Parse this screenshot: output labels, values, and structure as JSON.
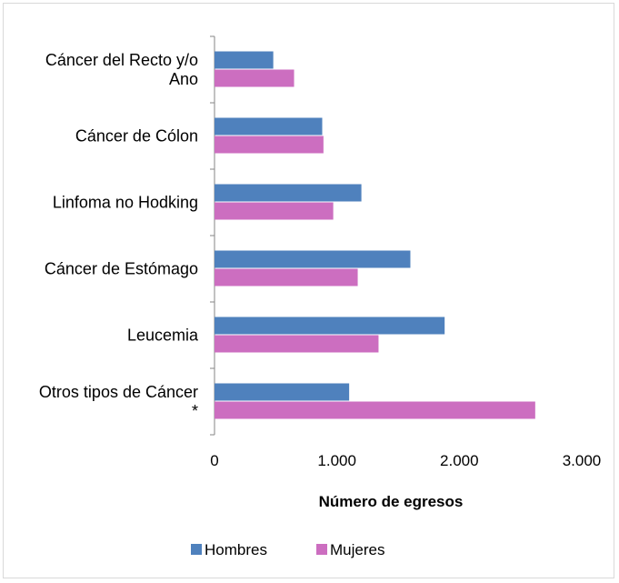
{
  "chart_data": {
    "type": "bar",
    "orientation": "horizontal",
    "categories": [
      [
        "Cáncer del Recto y/o",
        "Ano"
      ],
      [
        "Cáncer de Cólon"
      ],
      [
        "Linfoma no Hodking"
      ],
      [
        "Cáncer de Estómago"
      ],
      [
        "Leucemia"
      ],
      [
        "Otros tipos de Cáncer",
        "*"
      ]
    ],
    "series": [
      {
        "name": "Hombres",
        "color": "#4f81bd",
        "values": [
          480,
          880,
          1200,
          1600,
          1880,
          1100
        ]
      },
      {
        "name": "Mujeres",
        "color": "#cc6ec0",
        "values": [
          650,
          890,
          970,
          1170,
          1340,
          2620
        ]
      }
    ],
    "xlabel": "Número de egresos",
    "ylabel": "",
    "xlim": [
      0,
      3000
    ],
    "xticks": [
      0,
      1000,
      2000,
      3000
    ],
    "xtick_labels": [
      "0",
      "1.000",
      "2.000",
      "3.000"
    ],
    "grid": false,
    "legend_position": "bottom"
  }
}
